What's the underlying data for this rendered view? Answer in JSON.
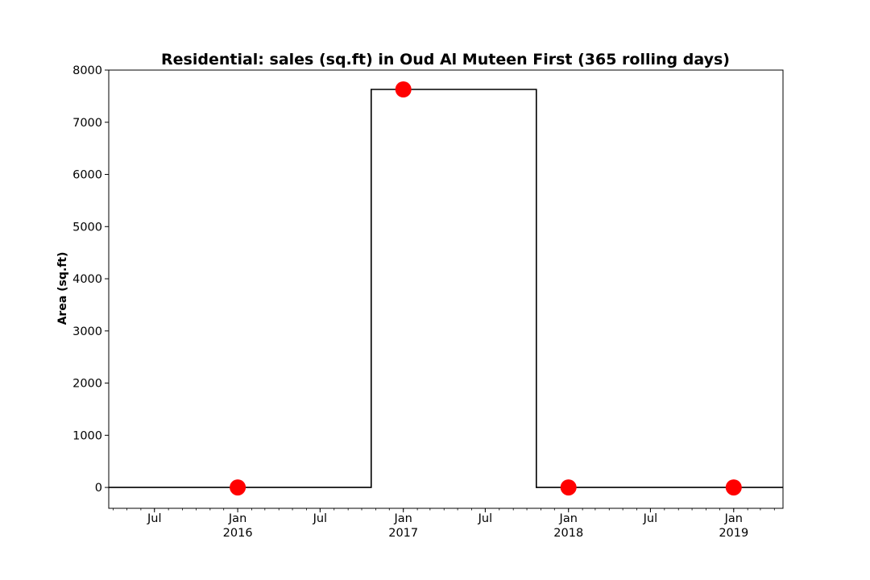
{
  "chart_data": {
    "type": "line",
    "title": "Residential: sales (sq.ft) in Oud Al Muteen First (365 rolling days)",
    "xlabel": "",
    "ylabel": "Area (sq.ft)",
    "ylim": [
      -400,
      8000
    ],
    "xlim": [
      "2015-03-22",
      "2019-04-20"
    ],
    "yticks": [
      0,
      1000,
      2000,
      3000,
      4000,
      5000,
      6000,
      7000,
      8000
    ],
    "xticks_major": [
      {
        "date": "2015-07-01",
        "label": "Jul",
        "year": ""
      },
      {
        "date": "2016-01-01",
        "label": "Jan",
        "year": "2016"
      },
      {
        "date": "2016-07-01",
        "label": "Jul",
        "year": ""
      },
      {
        "date": "2017-01-01",
        "label": "Jan",
        "year": "2017"
      },
      {
        "date": "2017-07-01",
        "label": "Jul",
        "year": ""
      },
      {
        "date": "2018-01-01",
        "label": "Jan",
        "year": "2018"
      },
      {
        "date": "2018-07-01",
        "label": "Jul",
        "year": ""
      },
      {
        "date": "2019-01-01",
        "label": "Jan",
        "year": "2019"
      }
    ],
    "grid": false,
    "series": [
      {
        "style": "step-line",
        "color": "#000000",
        "x": [
          "2015-03-22",
          "2016-10-22",
          "2016-10-22",
          "2017-10-22",
          "2017-10-22",
          "2019-04-20"
        ],
        "y": [
          0,
          0,
          7630,
          7630,
          0,
          0
        ]
      },
      {
        "style": "markers",
        "color": "#ff0000",
        "x": [
          "2016-01-01",
          "2017-01-01",
          "2018-01-01",
          "2019-01-01"
        ],
        "y": [
          0,
          7630,
          0,
          0
        ]
      }
    ]
  }
}
